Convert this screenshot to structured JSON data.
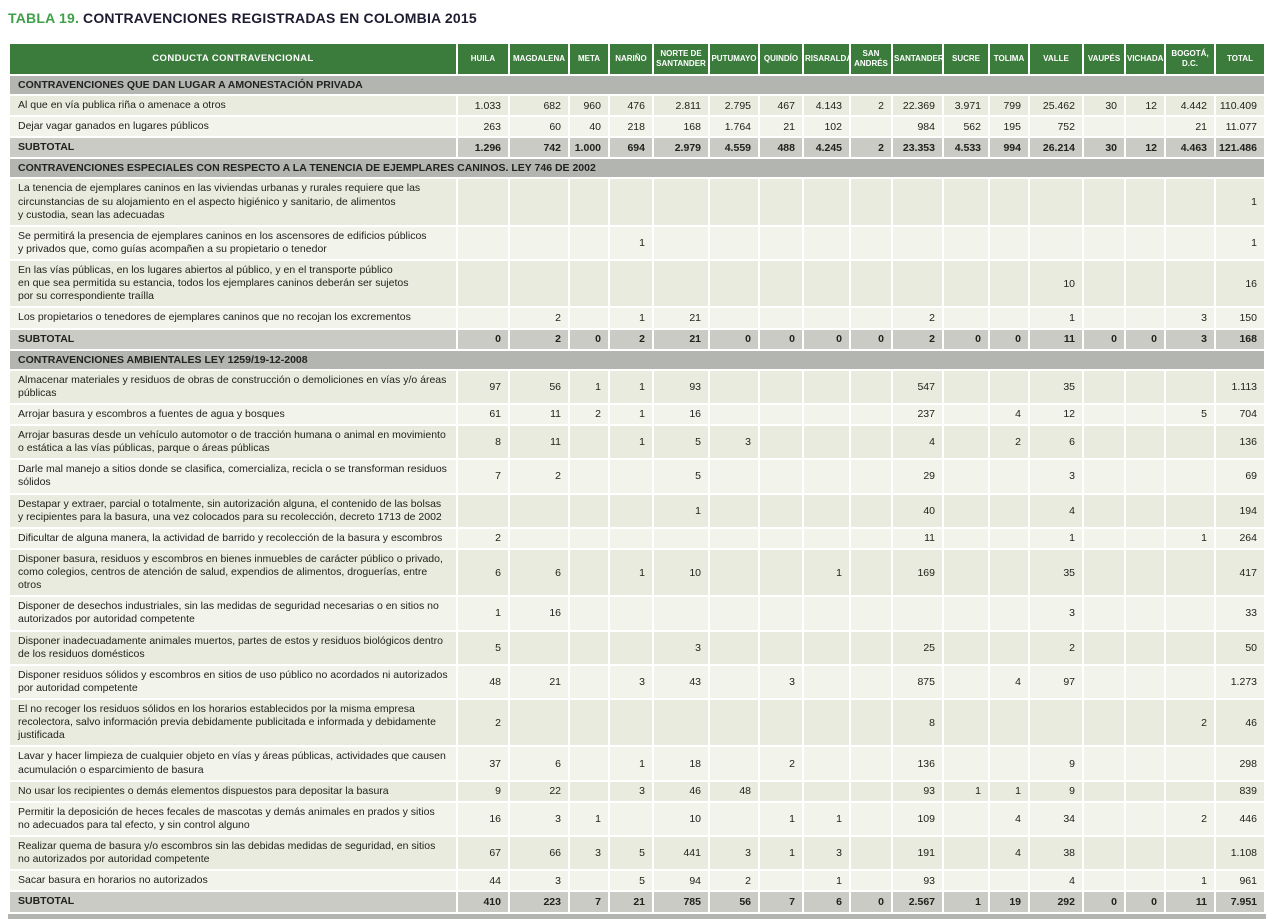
{
  "title": {
    "label": "TABLA 19.",
    "text": "CONTRAVENCIONES REGISTRADAS EN COLOMBIA 2015"
  },
  "colors": {
    "header_green": "#3b7c3c",
    "title_green": "#3fa04a",
    "title_dark": "#1d1c30",
    "section_gray": "#b3b5b0",
    "subtotal_gray": "#cacbc5",
    "row_odd": "#e8ebde",
    "row_even": "#f2f3ea",
    "text_dark": "#23221c"
  },
  "table": {
    "first_col_header": "CONDUCTA  CONTRAVENCIONAL",
    "columns": [
      "HUILA",
      "MAGDALENA",
      "META",
      "NARIÑO",
      "NORTE DE SANTANDER",
      "PUTUMAYO",
      "QUINDÍO",
      "RISARALDA",
      "SAN ANDRÉS",
      "SANTANDER",
      "SUCRE",
      "TOLIMA",
      "VALLE",
      "VAUPÉS",
      "VICHADA",
      "BOGOTÁ, D.C.",
      "TOTAL"
    ],
    "subtotal_label": "SUBTOTAL",
    "sections": [
      {
        "header": "CONTRAVENCIONES QUE DAN LUGAR A AMONESTACIÓN PRIVADA",
        "rows": [
          {
            "label": "Al que en vía publica riña o amenace a otros",
            "values": [
              "1.033",
              "682",
              "960",
              "476",
              "2.811",
              "2.795",
              "467",
              "4.143",
              "2",
              "22.369",
              "3.971",
              "799",
              "25.462",
              "30",
              "12",
              "4.442",
              "110.409"
            ]
          },
          {
            "label": "Dejar vagar ganados en lugares públicos",
            "values": [
              "263",
              "60",
              "40",
              "218",
              "168",
              "1.764",
              "21",
              "102",
              "",
              "984",
              "562",
              "195",
              "752",
              "",
              "",
              "21",
              "11.077"
            ]
          }
        ],
        "subtotal": [
          "1.296",
          "742",
          "1.000",
          "694",
          "2.979",
          "4.559",
          "488",
          "4.245",
          "2",
          "23.353",
          "4.533",
          "994",
          "26.214",
          "30",
          "12",
          "4.463",
          "121.486"
        ]
      },
      {
        "header": "CONTRAVENCIONES ESPECIALES CON RESPECTO A LA TENENCIA DE EJEMPLARES CANINOS. LEY 746 DE 2002",
        "rows": [
          {
            "label": "La tenencia de ejemplares caninos en las viviendas urbanas y rurales requiere que las\ncircunstancias de su alojamiento en el aspecto higiénico y sanitario, de alimentos\ny custodia, sean las adecuadas",
            "values": [
              "",
              "",
              "",
              "",
              "",
              "",
              "",
              "",
              "",
              "",
              "",
              "",
              "",
              "",
              "",
              "",
              "1"
            ]
          },
          {
            "label": "Se permitirá la presencia de ejemplares caninos en los ascensores de edificios públicos\ny privados que, como guías acompañen a su propietario o tenedor",
            "values": [
              "",
              "",
              "",
              "1",
              "",
              "",
              "",
              "",
              "",
              "",
              "",
              "",
              "",
              "",
              "",
              "",
              "1"
            ]
          },
          {
            "label": "En las vías públicas, en los lugares abiertos al público, y en el transporte público\nen que sea permitida su estancia, todos los ejemplares caninos deberán ser sujetos\npor su correspondiente traílla",
            "values": [
              "",
              "",
              "",
              "",
              "",
              "",
              "",
              "",
              "",
              "",
              "",
              "",
              "10",
              "",
              "",
              "",
              "16"
            ]
          },
          {
            "label": "Los propietarios o tenedores de ejemplares caninos que no recojan los excrementos",
            "values": [
              "",
              "2",
              "",
              "1",
              "21",
              "",
              "",
              "",
              "",
              "2",
              "",
              "",
              "1",
              "",
              "",
              "3",
              "150"
            ]
          }
        ],
        "subtotal": [
          "0",
          "2",
          "0",
          "2",
          "21",
          "0",
          "0",
          "0",
          "0",
          "2",
          "0",
          "0",
          "11",
          "0",
          "0",
          "3",
          "168"
        ]
      },
      {
        "header": "CONTRAVENCIONES AMBIENTALES LEY 1259/19-12-2008",
        "rows": [
          {
            "label": "Almacenar materiales y residuos de obras de construcción o demoliciones en vías y/o áreas\npúblicas",
            "values": [
              "97",
              "56",
              "1",
              "1",
              "93",
              "",
              "",
              "",
              "",
              "547",
              "",
              "",
              "35",
              "",
              "",
              "",
              "1.113"
            ]
          },
          {
            "label": "Arrojar basura y escombros a fuentes de agua y bosques",
            "values": [
              "61",
              "11",
              "2",
              "1",
              "16",
              "",
              "",
              "",
              "",
              "237",
              "",
              "4",
              "12",
              "",
              "",
              "5",
              "704"
            ]
          },
          {
            "label": "Arrojar basuras desde un vehículo automotor o de tracción humana o animal en movimiento\no estática a las vías públicas, parque o áreas públicas",
            "values": [
              "8",
              "11",
              "",
              "1",
              "5",
              "3",
              "",
              "",
              "",
              "4",
              "",
              "2",
              "6",
              "",
              "",
              "",
              "136"
            ]
          },
          {
            "label": "Darle mal manejo a sitios donde se clasifica, comercializa, recicla o se transforman residuos\nsólidos",
            "values": [
              "7",
              "2",
              "",
              "",
              "5",
              "",
              "",
              "",
              "",
              "29",
              "",
              "",
              "3",
              "",
              "",
              "",
              "69"
            ]
          },
          {
            "label": "Destapar y extraer, parcial o totalmente, sin autorización alguna, el contenido de las bolsas\ny recipientes para la basura, una vez colocados para su recolección, decreto 1713 de 2002",
            "values": [
              "",
              "",
              "",
              "",
              "1",
              "",
              "",
              "",
              "",
              "40",
              "",
              "",
              "4",
              "",
              "",
              "",
              "194"
            ]
          },
          {
            "label": "Dificultar de alguna manera, la actividad de barrido y recolección de la basura y escombros",
            "values": [
              "2",
              "",
              "",
              "",
              "",
              "",
              "",
              "",
              "",
              "11",
              "",
              "",
              "1",
              "",
              "",
              "1",
              "264"
            ]
          },
          {
            "label": "Disponer basura, residuos y escombros en bienes inmuebles de carácter público o privado,\ncomo colegios, centros de atención de salud, expendios de alimentos, droguerías, entre otros",
            "values": [
              "6",
              "6",
              "",
              "1",
              "10",
              "",
              "",
              "1",
              "",
              "169",
              "",
              "",
              "35",
              "",
              "",
              "",
              "417"
            ]
          },
          {
            "label": "Disponer de desechos industriales, sin las medidas de seguridad necesarias o en sitios no\nautorizados por autoridad competente",
            "values": [
              "1",
              "16",
              "",
              "",
              "",
              "",
              "",
              "",
              "",
              "",
              "",
              "",
              "3",
              "",
              "",
              "",
              "33"
            ]
          },
          {
            "label": "Disponer inadecuadamente animales muertos, partes de estos y residuos biológicos dentro\nde los residuos domésticos",
            "values": [
              "5",
              "",
              "",
              "",
              "3",
              "",
              "",
              "",
              "",
              "25",
              "",
              "",
              "2",
              "",
              "",
              "",
              "50"
            ]
          },
          {
            "label": "Disponer residuos sólidos y escombros en sitios de uso público no acordados ni autorizados\npor autoridad competente",
            "values": [
              "48",
              "21",
              "",
              "3",
              "43",
              "",
              "3",
              "",
              "",
              "875",
              "",
              "4",
              "97",
              "",
              "",
              "",
              "1.273"
            ]
          },
          {
            "label": "El no recoger los residuos sólidos en los horarios establecidos por la misma empresa\nrecolectora, salvo información previa debidamente publicitada e informada y debidamente\njustificada",
            "values": [
              "2",
              "",
              "",
              "",
              "",
              "",
              "",
              "",
              "",
              "8",
              "",
              "",
              "",
              "",
              "",
              "2",
              "46"
            ]
          },
          {
            "label": "Lavar y hacer limpieza de cualquier objeto en vías y áreas públicas, actividades que causen\nacumulación o esparcimiento de basura",
            "values": [
              "37",
              "6",
              "",
              "1",
              "18",
              "",
              "2",
              "",
              "",
              "136",
              "",
              "",
              "9",
              "",
              "",
              "",
              "298"
            ]
          },
          {
            "label": "No usar los recipientes o demás elementos dispuestos para depositar la basura",
            "values": [
              "9",
              "22",
              "",
              "3",
              "46",
              "48",
              "",
              "",
              "",
              "93",
              "1",
              "1",
              "9",
              "",
              "",
              "",
              "839"
            ]
          },
          {
            "label": "Permitir la deposición de heces fecales de mascotas y demás animales en prados y sitios\nno adecuados para tal efecto, y sin control alguno",
            "values": [
              "16",
              "3",
              "1",
              "",
              "10",
              "",
              "1",
              "1",
              "",
              "109",
              "",
              "4",
              "34",
              "",
              "",
              "2",
              "446"
            ]
          },
          {
            "label": "Realizar quema de basura y/o escombros sin las debidas medidas de seguridad, en sitios\nno autorizados por autoridad competente",
            "values": [
              "67",
              "66",
              "3",
              "5",
              "441",
              "3",
              "1",
              "3",
              "",
              "191",
              "",
              "4",
              "38",
              "",
              "",
              "",
              "1.108"
            ]
          },
          {
            "label": "Sacar basura en horarios no autorizados",
            "values": [
              "44",
              "3",
              "",
              "5",
              "94",
              "2",
              "",
              "1",
              "",
              "93",
              "",
              "",
              "4",
              "",
              "",
              "1",
              "961"
            ]
          }
        ],
        "subtotal": [
          "410",
          "223",
          "7",
          "21",
          "785",
          "56",
          "7",
          "6",
          "0",
          "2.567",
          "1",
          "19",
          "292",
          "0",
          "0",
          "11",
          "7.951"
        ]
      }
    ]
  }
}
